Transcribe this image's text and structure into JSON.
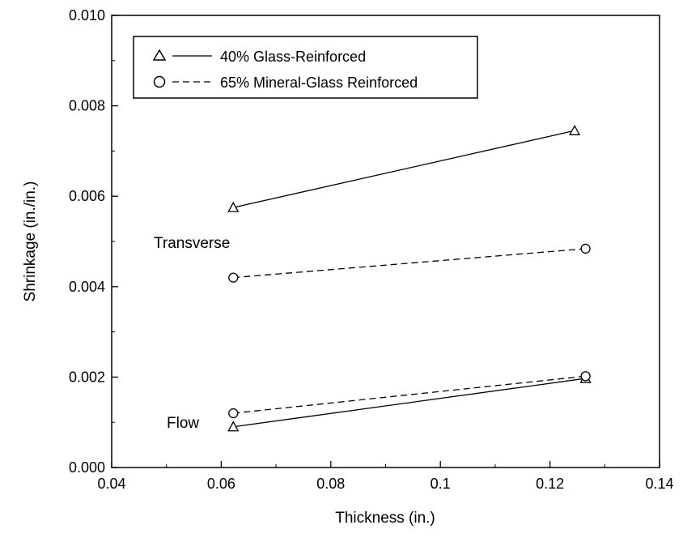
{
  "chart_data": {
    "type": "line",
    "xlabel": "Thickness (in.)",
    "ylabel": "Shrinkage (in./in.)",
    "xlim": [
      0.04,
      0.14
    ],
    "ylim": [
      0,
      0.01
    ],
    "xticks": [
      "0.04",
      "0.06",
      "0.08",
      "0.1",
      "0.12",
      "0.14"
    ],
    "xtick_values": [
      0.04,
      0.06,
      0.08,
      0.1,
      0.12,
      0.14
    ],
    "yticks": [
      "0.000",
      "0.002",
      "0.004",
      "0.006",
      "0.008",
      "0.010"
    ],
    "ytick_values": [
      0,
      0.002,
      0.004,
      0.006,
      0.008,
      0.01
    ],
    "legend": {
      "placement": "top-left",
      "entries": [
        "40% Glass-Reinforced",
        "65% Mineral-Glass Reinforced"
      ]
    },
    "annotations": [
      "Transverse",
      "Flow"
    ],
    "series": [
      {
        "name": "40% Glass-Reinforced",
        "direction": "Transverse",
        "marker": "triangle",
        "dash": false,
        "x": [
          0.0622,
          0.1245
        ],
        "y": [
          0.00575,
          0.00745
        ]
      },
      {
        "name": "65% Mineral-Glass Reinforced",
        "direction": "Transverse",
        "marker": "circle",
        "dash": true,
        "x": [
          0.0622,
          0.1265
        ],
        "y": [
          0.0042,
          0.00484
        ]
      },
      {
        "name": "40% Glass-Reinforced",
        "direction": "Flow",
        "marker": "triangle",
        "dash": false,
        "x": [
          0.0622,
          0.1265
        ],
        "y": [
          0.0009,
          0.00197
        ]
      },
      {
        "name": "65% Mineral-Glass Reinforced",
        "direction": "Flow",
        "marker": "circle",
        "dash": true,
        "x": [
          0.0622,
          0.1265
        ],
        "y": [
          0.0012,
          0.00202
        ]
      }
    ]
  }
}
